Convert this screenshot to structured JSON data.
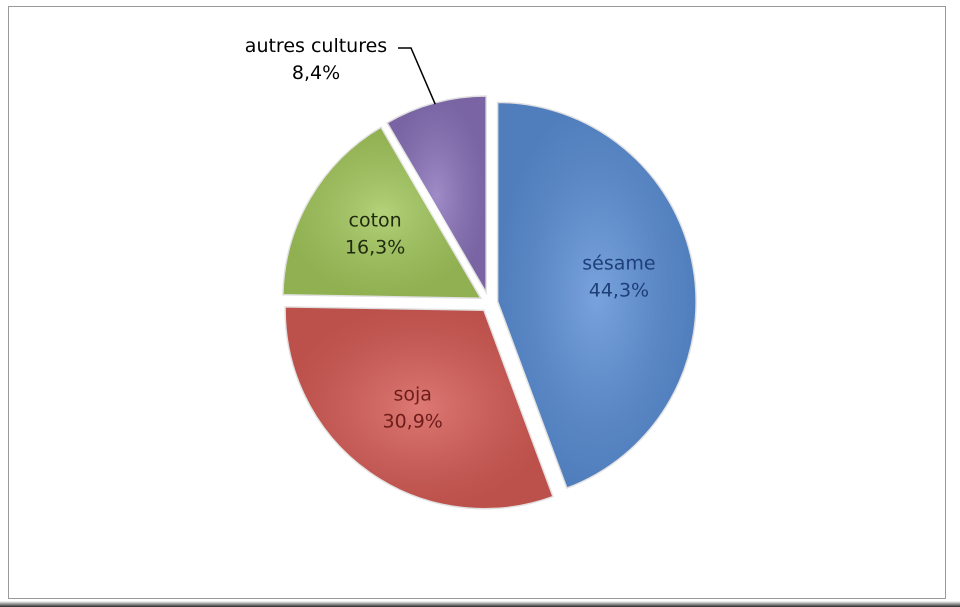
{
  "chart_data": {
    "type": "pie",
    "slices": [
      {
        "label": "sésame",
        "value": 44.3,
        "value_label": "44,3%",
        "color": "#5b8fd6",
        "label_color": "#1f3f78"
      },
      {
        "label": "soja",
        "value": 30.9,
        "value_label": "30,9%",
        "color": "#d65b55",
        "label_color": "#6e1d1a"
      },
      {
        "label": "coton",
        "value": 16.3,
        "value_label": "16,3%",
        "color": "#a3c85c",
        "label_color": "#1f2a0e"
      },
      {
        "label": "autres cultures",
        "value": 8.4,
        "value_label": "8,4%",
        "color": "#8a72ba",
        "label_color": "#000000"
      }
    ],
    "start_angle_deg": 0,
    "direction": "clockwise",
    "exploded": true,
    "legend": "none"
  }
}
